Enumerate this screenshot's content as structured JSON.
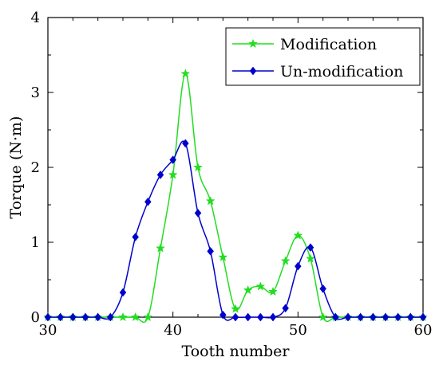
{
  "chart_data": {
    "type": "line",
    "xlabel": "Tooth number",
    "ylabel": "Torque (N·m)",
    "xlim": [
      30,
      60
    ],
    "ylim": [
      0,
      4
    ],
    "xticks": [
      30,
      40,
      50,
      60
    ],
    "yticks": [
      0,
      1,
      2,
      3,
      4
    ],
    "xtick_labels": [
      "30",
      "40",
      "50",
      "60"
    ],
    "ytick_labels": [
      "0",
      "1",
      "2",
      "3",
      "4"
    ],
    "grid": false,
    "legend_position": "top-right",
    "series": [
      {
        "name": "Modification",
        "color": "#22dd22",
        "marker": "star",
        "points": [
          [
            30,
            0
          ],
          [
            31,
            0
          ],
          [
            32,
            0
          ],
          [
            33,
            0
          ],
          [
            34,
            0
          ],
          [
            35,
            0
          ],
          [
            36,
            0
          ],
          [
            37,
            0
          ],
          [
            38,
            0
          ],
          [
            39,
            0.92
          ],
          [
            40,
            1.9
          ],
          [
            41,
            3.25
          ],
          [
            42,
            2.0
          ],
          [
            43,
            1.55
          ],
          [
            44,
            0.8
          ],
          [
            45,
            0.11
          ],
          [
            46,
            0.36
          ],
          [
            47,
            0.41
          ],
          [
            48,
            0.34
          ],
          [
            49,
            0.75
          ],
          [
            50,
            1.09
          ],
          [
            51,
            0.78
          ],
          [
            52,
            0
          ],
          [
            53,
            0
          ],
          [
            54,
            0
          ],
          [
            55,
            0
          ],
          [
            56,
            0
          ],
          [
            57,
            0
          ],
          [
            58,
            0
          ],
          [
            59,
            0
          ],
          [
            60,
            0
          ]
        ]
      },
      {
        "name": "Un-modification",
        "color": "#0000cc",
        "marker": "diamond",
        "points": [
          [
            30,
            0
          ],
          [
            31,
            0
          ],
          [
            32,
            0
          ],
          [
            33,
            0
          ],
          [
            34,
            0
          ],
          [
            35,
            0
          ],
          [
            36,
            0.33
          ],
          [
            37,
            1.07
          ],
          [
            38,
            1.54
          ],
          [
            39,
            1.9
          ],
          [
            40,
            2.1
          ],
          [
            41,
            2.32
          ],
          [
            42,
            1.39
          ],
          [
            43,
            0.88
          ],
          [
            44,
            0.03
          ],
          [
            45,
            0
          ],
          [
            46,
            0
          ],
          [
            47,
            0
          ],
          [
            48,
            0
          ],
          [
            49,
            0.12
          ],
          [
            50,
            0.68
          ],
          [
            51,
            0.93
          ],
          [
            52,
            0.38
          ],
          [
            53,
            0
          ],
          [
            54,
            0
          ],
          [
            55,
            0
          ],
          [
            56,
            0
          ],
          [
            57,
            0
          ],
          [
            58,
            0
          ],
          [
            59,
            0
          ],
          [
            60,
            0
          ]
        ]
      }
    ]
  }
}
